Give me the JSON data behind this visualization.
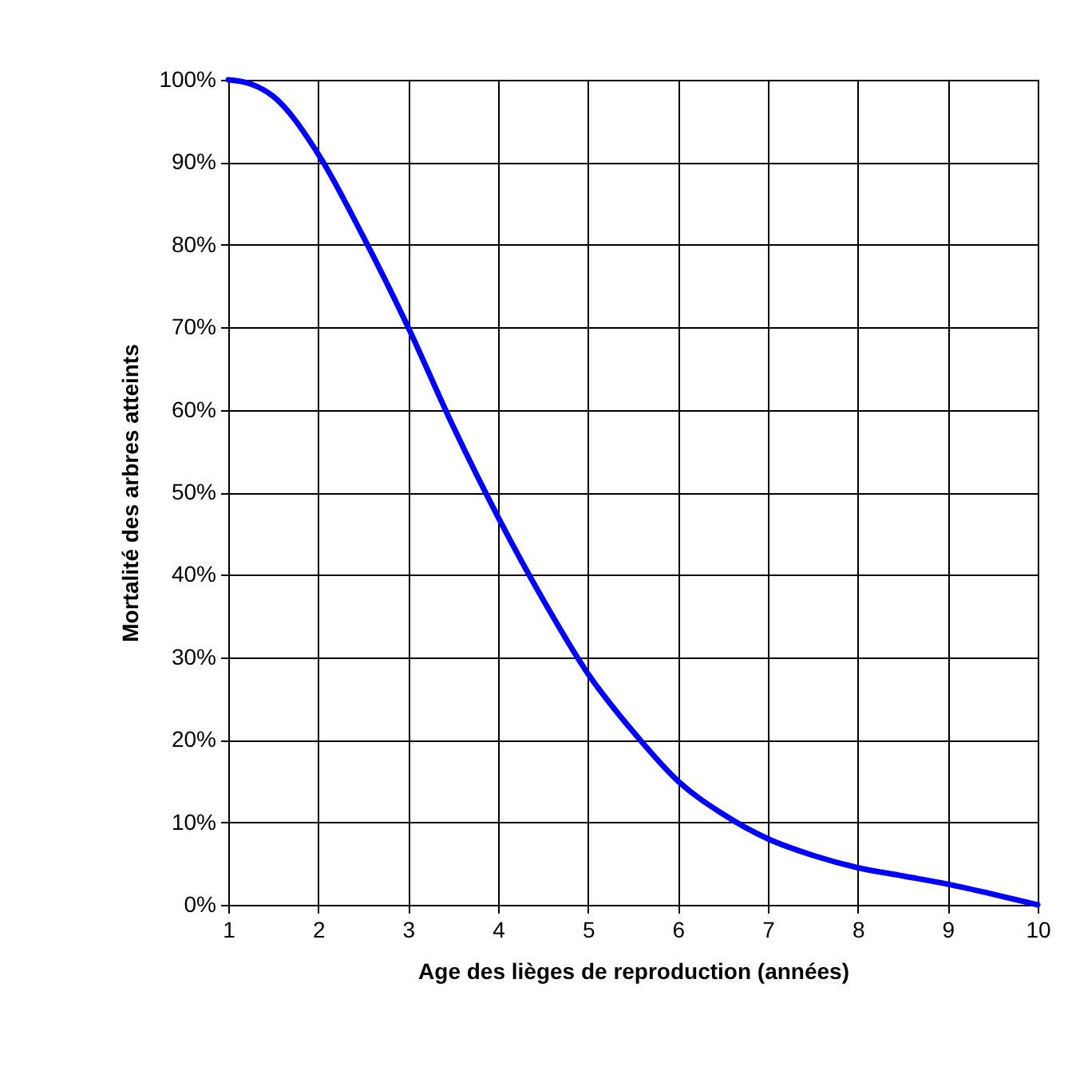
{
  "chart_data": {
    "type": "line",
    "xlabel": "Age des lièges de reproduction (années)",
    "ylabel": "Mortalité des arbres atteints",
    "x": [
      1,
      1.25,
      1.5,
      2,
      2.5,
      3,
      3.5,
      4,
      4.5,
      5,
      5.5,
      6,
      6.5,
      7,
      7.5,
      8,
      8.5,
      9,
      9.5,
      10
    ],
    "series": [
      {
        "color": "#0000ff",
        "values": [
          100,
          99.5,
          98,
          91,
          81,
          70,
          58,
          47,
          37,
          28,
          21,
          15,
          11,
          8,
          6,
          4.5,
          3.5,
          2.5,
          1.3,
          0
        ]
      }
    ],
    "xlim": [
      1,
      10
    ],
    "xticks": [
      1,
      2,
      3,
      4,
      5,
      6,
      7,
      8,
      9,
      10
    ],
    "ylim": [
      0,
      100
    ],
    "yticks": [
      {
        "value": 0,
        "label": "0%"
      },
      {
        "value": 10,
        "label": "10%"
      },
      {
        "value": 20,
        "label": "20%"
      },
      {
        "value": 30,
        "label": "30%"
      },
      {
        "value": 40,
        "label": "40%"
      },
      {
        "value": 50,
        "label": "50%"
      },
      {
        "value": 60,
        "label": "60%"
      },
      {
        "value": 70,
        "label": "70%"
      },
      {
        "value": 80,
        "label": "80%"
      },
      {
        "value": 90,
        "label": "90%"
      },
      {
        "value": 100,
        "label": "100%"
      }
    ],
    "grid": true,
    "marker": "none",
    "line_style": "solid"
  }
}
